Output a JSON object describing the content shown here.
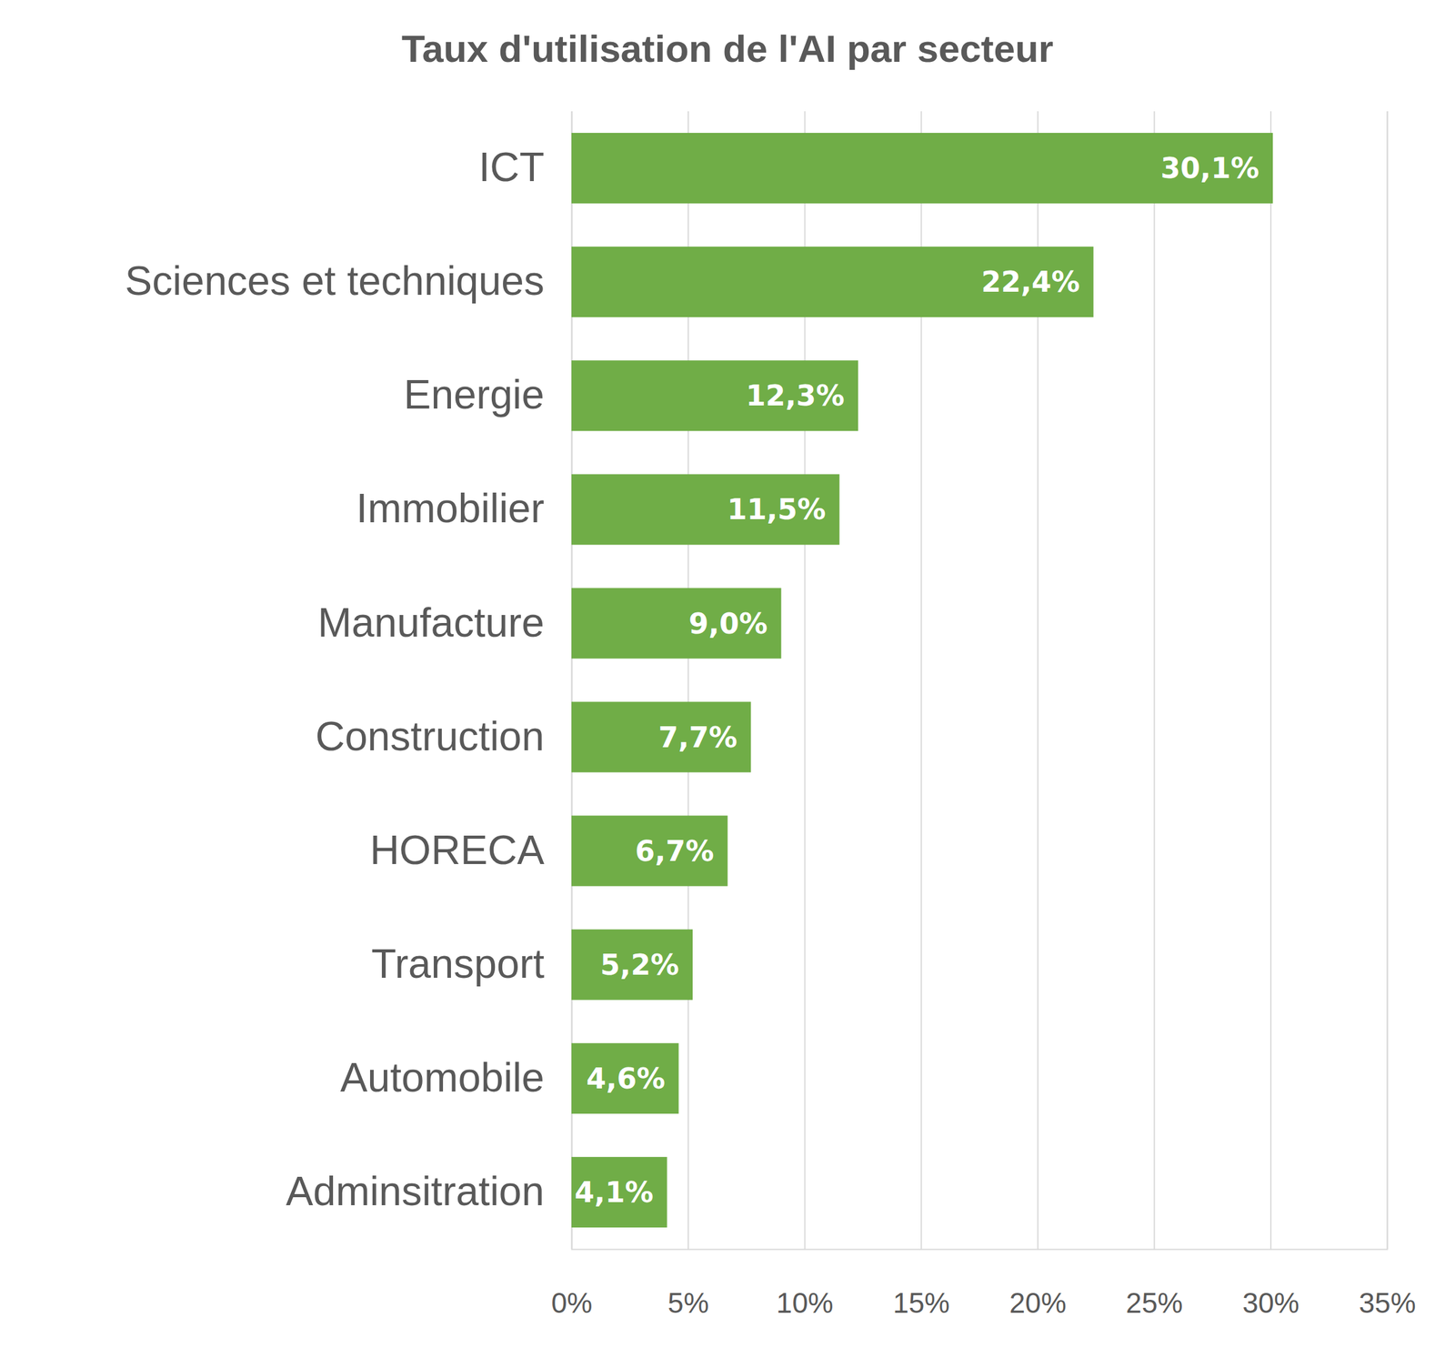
{
  "chart_data": {
    "type": "bar",
    "title": "Taux d'utilisation de l'AI par secteur",
    "orientation": "horizontal",
    "categories": [
      "ICT",
      "Sciences et techniques",
      "Energie",
      "Immobilier",
      "Manufacture",
      "Construction",
      "HORECA",
      "Transport",
      "Automobile",
      "Adminsitration"
    ],
    "values": [
      30.1,
      22.4,
      12.3,
      11.5,
      9.0,
      7.7,
      6.7,
      5.2,
      4.6,
      4.1
    ],
    "value_labels": [
      "30,1%",
      "22,4%",
      "12,3%",
      "11,5%",
      "9,0%",
      "7,7%",
      "6,7%",
      "5,2%",
      "4,6%",
      "4,1%"
    ],
    "color": "#70ad47",
    "xlim": [
      0,
      35
    ],
    "xticks": [
      {
        "value": 0,
        "label": "0%"
      },
      {
        "value": 5,
        "label": "5%"
      },
      {
        "value": 10,
        "label": "10%"
      },
      {
        "value": 15,
        "label": "15%"
      },
      {
        "value": 20,
        "label": "20%"
      },
      {
        "value": 25,
        "label": "25%"
      },
      {
        "value": 30,
        "label": "30%"
      },
      {
        "value": 35,
        "label": "35%"
      }
    ],
    "grid": true,
    "data_labels": true
  }
}
